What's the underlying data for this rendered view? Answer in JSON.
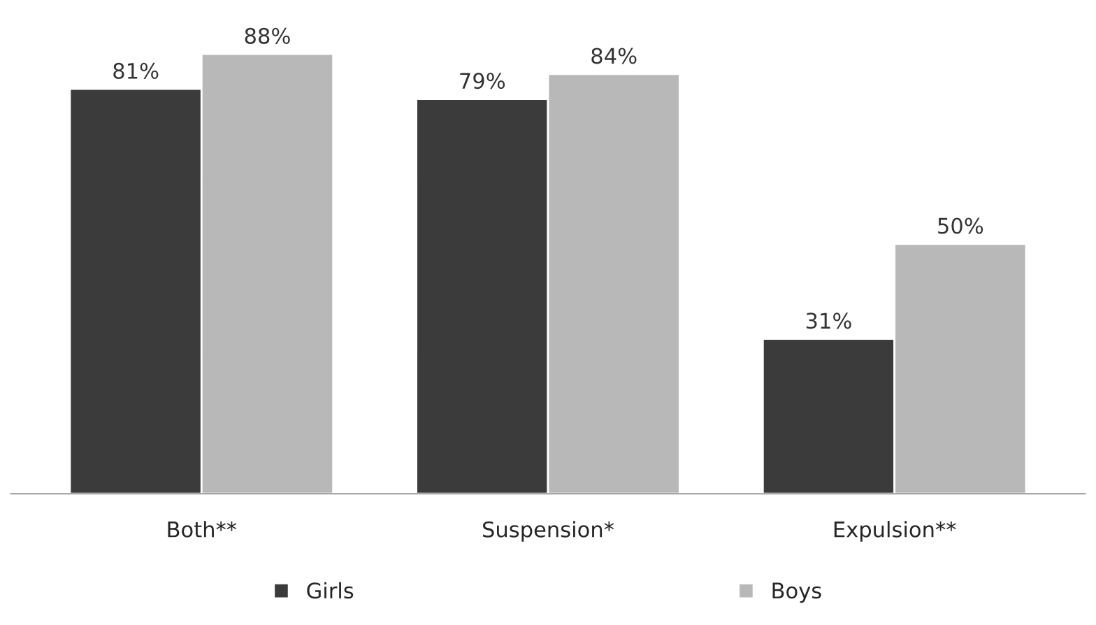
{
  "chart_data": {
    "type": "bar",
    "categories": [
      "Both**",
      "Suspension*",
      "Expulsion**"
    ],
    "series": [
      {
        "name": "Girls",
        "color": "#3b3b3b",
        "values": [
          81,
          79,
          31
        ],
        "value_labels": [
          "81%",
          "79%",
          "31%"
        ]
      },
      {
        "name": "Boys",
        "color": "#b8b8b8",
        "values": [
          88,
          84,
          50
        ],
        "value_labels": [
          "88%",
          "84%",
          "50%"
        ]
      }
    ],
    "legend": "bottom",
    "grid": false
  }
}
